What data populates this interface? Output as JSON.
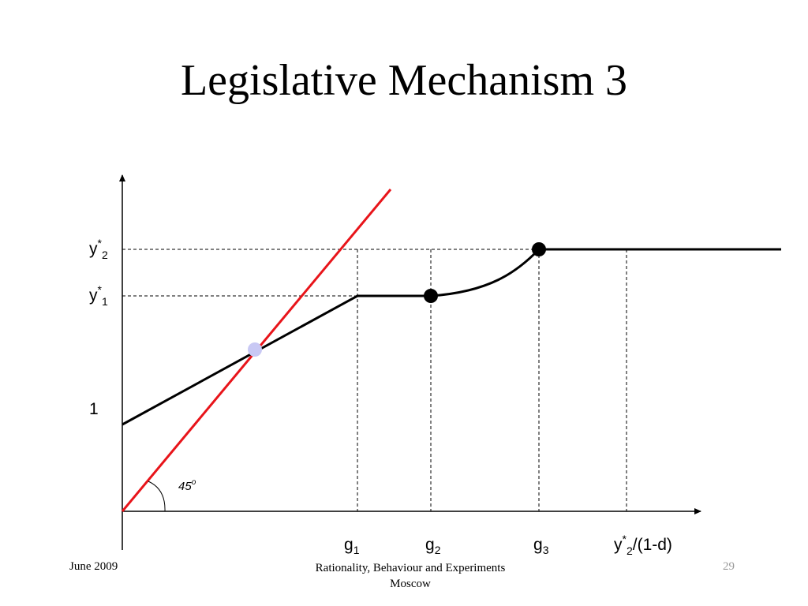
{
  "slide": {
    "title": "Legislative Mechanism 3"
  },
  "diagram": {
    "y_labels": {
      "y2": {
        "base": "y",
        "sup": "*",
        "sub": "2"
      },
      "y1": {
        "base": "y",
        "sup": "*",
        "sub": "1"
      },
      "one": "1"
    },
    "x_labels": {
      "g1": {
        "base": "g",
        "sub": "1"
      },
      "g2": {
        "base": "g",
        "sub": "2"
      },
      "g3": {
        "base": "g",
        "sub": "3"
      },
      "y2d": {
        "base": "y",
        "sup": "*",
        "sub": "2",
        "tail": "/(1-d)"
      }
    },
    "angle_label": {
      "value": "45",
      "sup": "o"
    },
    "colors": {
      "axis": "#000000",
      "reference_line": "#e8141a",
      "piecewise_curve": "#000000",
      "intersection_point": "#c8c8f4",
      "marker_points": "#000000",
      "dashed_guides": "#000000"
    }
  },
  "footer": {
    "date": "June 2009",
    "conference_line1": "Rationality, Behaviour and Experiments",
    "conference_line2": "Moscow",
    "page_number": "29"
  }
}
